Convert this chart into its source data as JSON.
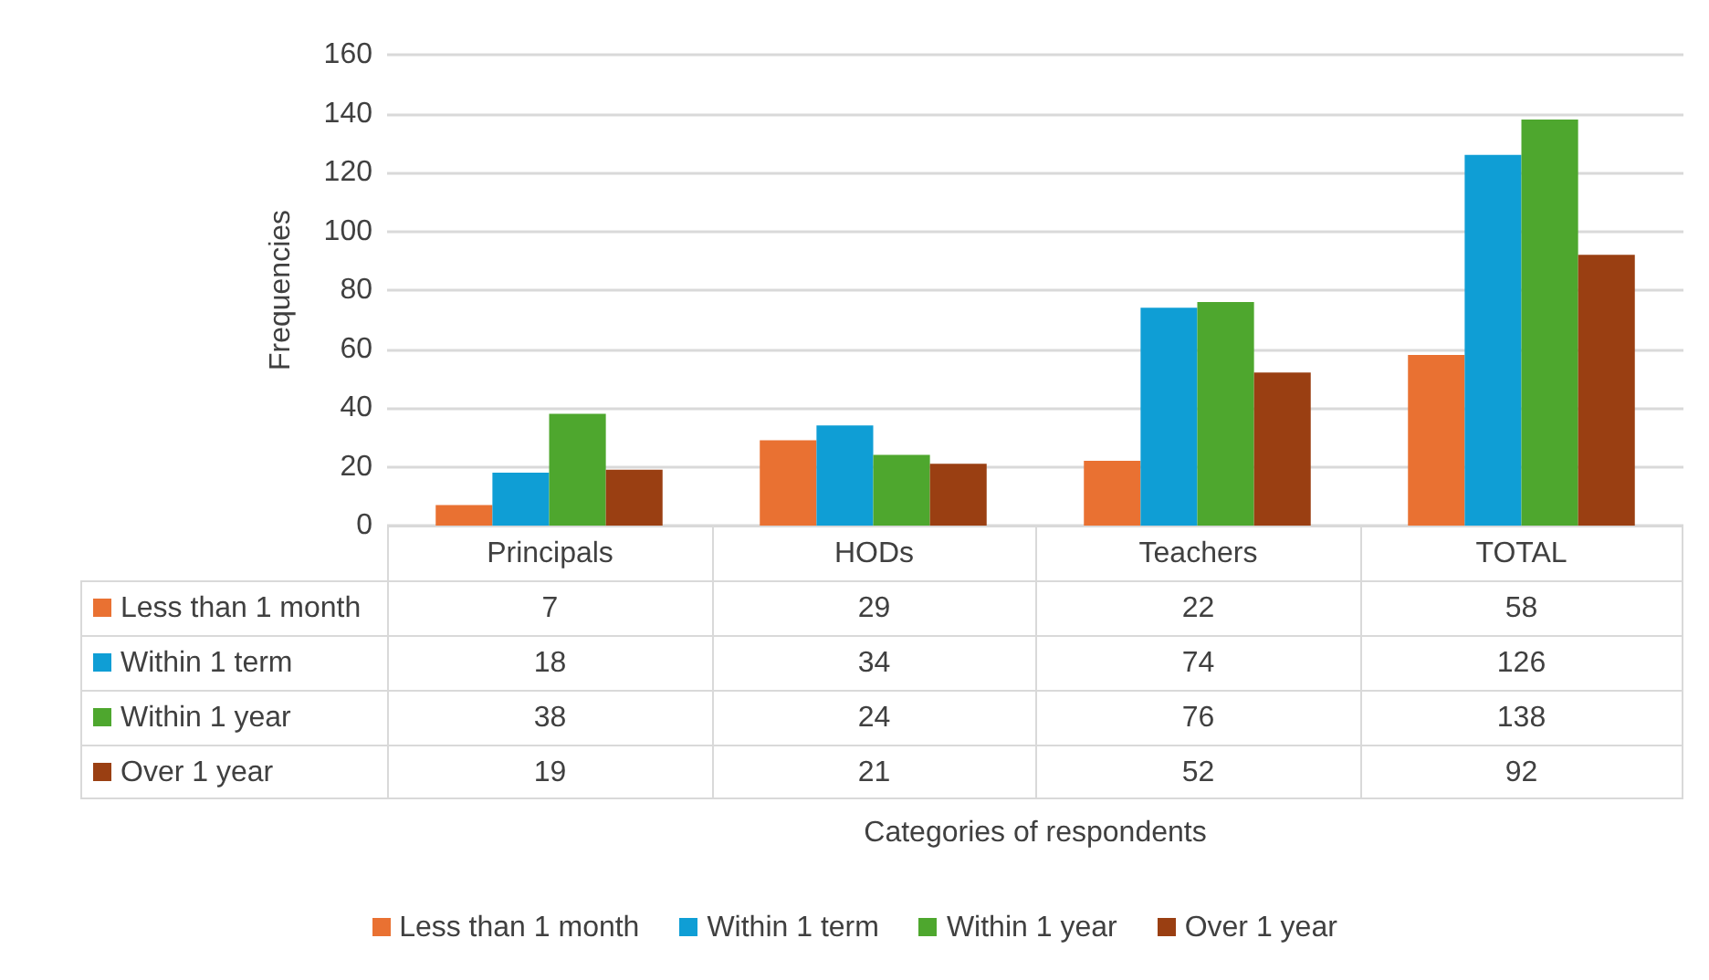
{
  "chart_data": {
    "type": "bar",
    "annotations": [
      "Categories of respondents"
    ],
    "ylabel": "Frequencies",
    "categories": [
      "Principals",
      "HODs",
      "Teachers",
      "TOTAL"
    ],
    "series": [
      {
        "name": "Less than 1 month",
        "color": "#e97132",
        "values": [
          7,
          29,
          22,
          58
        ]
      },
      {
        "name": "Within 1 term",
        "color": "#0f9ed5",
        "values": [
          18,
          34,
          74,
          126
        ]
      },
      {
        "name": "Within 1 year",
        "color": "#4ea72e",
        "values": [
          38,
          24,
          76,
          138
        ]
      },
      {
        "name": "Over 1 year",
        "color": "#9a3f12",
        "values": [
          19,
          21,
          52,
          92
        ]
      }
    ],
    "ylim": [
      0,
      160
    ],
    "yticks": [
      0,
      20,
      40,
      60,
      80,
      100,
      120,
      140,
      160
    ],
    "grid": "y",
    "legend": "bottom",
    "data_labels": true
  }
}
